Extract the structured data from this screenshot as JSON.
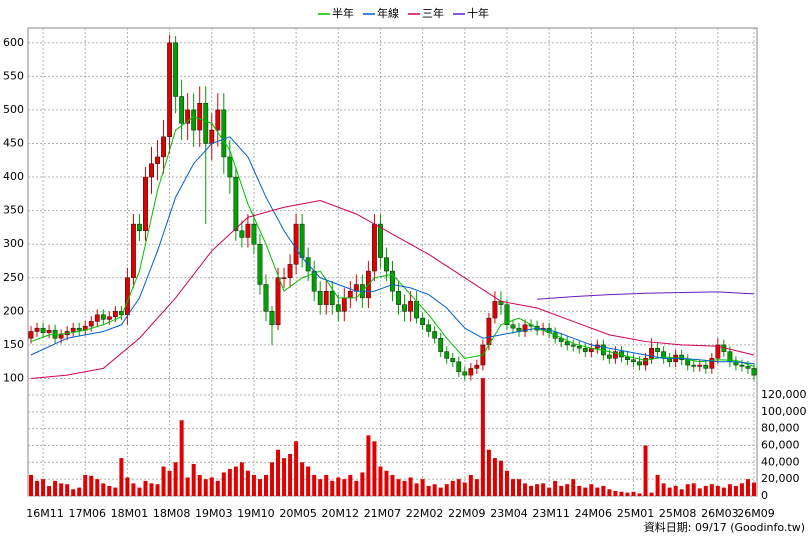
{
  "chart_data": {
    "type": "candlestick",
    "categories": [
      null,
      null,
      "16M11",
      null,
      null,
      null,
      null,
      null,
      null,
      "17M06",
      null,
      null,
      null,
      null,
      null,
      null,
      "18M01",
      null,
      null,
      null,
      null,
      null,
      null,
      "18M08",
      null,
      null,
      null,
      null,
      null,
      null,
      "19M03",
      null,
      null,
      null,
      null,
      null,
      null,
      "19M10",
      null,
      null,
      null,
      null,
      null,
      null,
      "20M05",
      null,
      null,
      null,
      null,
      null,
      null,
      "20M12",
      null,
      null,
      null,
      null,
      null,
      null,
      "21M07",
      null,
      null,
      null,
      null,
      null,
      null,
      "22M02",
      null,
      null,
      null,
      null,
      null,
      null,
      "22M09",
      null,
      null,
      null,
      null,
      null,
      null,
      "23M04",
      null,
      null,
      null,
      null,
      null,
      null,
      "23M11",
      null,
      null,
      null,
      null,
      null,
      null,
      "24M06",
      null,
      null,
      null,
      null,
      null,
      null,
      "25M01",
      null,
      null,
      null,
      null,
      null,
      null,
      "25M08",
      null,
      null,
      null,
      null,
      null,
      null,
      "26M03",
      null,
      null,
      null,
      null,
      null,
      "26M09"
    ],
    "open": [
      160,
      170,
      175,
      168,
      172,
      160,
      165,
      170,
      175,
      172,
      178,
      185,
      195,
      188,
      192,
      200,
      195,
      250,
      330,
      320,
      400,
      420,
      430,
      460,
      600,
      520,
      480,
      500,
      470,
      510,
      450,
      470,
      500,
      430,
      400,
      320,
      310,
      330,
      300,
      240,
      200,
      180,
      250,
      250,
      270,
      330,
      280,
      260,
      230,
      210,
      230,
      210,
      200,
      220,
      230,
      240,
      220,
      260,
      330,
      280,
      260,
      230,
      210,
      200,
      215,
      190,
      180,
      170,
      160,
      140,
      130,
      125,
      110,
      105,
      115,
      120,
      150,
      190,
      215,
      210,
      180,
      175,
      170,
      180,
      178,
      172,
      175,
      168,
      160,
      155,
      150,
      148,
      145,
      140,
      145,
      150,
      135,
      130,
      140,
      132,
      128,
      125,
      120,
      130,
      145,
      140,
      130,
      125,
      135,
      128,
      120,
      118,
      120,
      115,
      130,
      150,
      140,
      125,
      120,
      118,
      115
    ],
    "high": [
      178,
      183,
      183,
      180,
      180,
      173,
      178,
      183,
      183,
      186,
      193,
      203,
      203,
      200,
      208,
      208,
      265,
      345,
      345,
      415,
      445,
      455,
      485,
      612,
      610,
      545,
      525,
      525,
      535,
      535,
      495,
      525,
      525,
      455,
      415,
      335,
      345,
      345,
      315,
      255,
      208,
      265,
      265,
      285,
      345,
      345,
      295,
      275,
      245,
      245,
      245,
      225,
      235,
      245,
      255,
      255,
      275,
      345,
      345,
      295,
      275,
      245,
      225,
      230,
      230,
      198,
      188,
      178,
      168,
      148,
      138,
      133,
      118,
      123,
      128,
      158,
      198,
      230,
      230,
      218,
      188,
      183,
      188,
      188,
      186,
      183,
      183,
      176,
      168,
      163,
      158,
      156,
      153,
      153,
      158,
      158,
      143,
      148,
      148,
      140,
      136,
      133,
      138,
      160,
      153,
      148,
      138,
      143,
      143,
      136,
      128,
      128,
      128,
      138,
      160,
      158,
      148,
      133,
      128,
      126,
      123
    ],
    "low": [
      152,
      162,
      160,
      160,
      152,
      152,
      157,
      162,
      164,
      164,
      170,
      177,
      180,
      180,
      184,
      187,
      180,
      235,
      305,
      305,
      375,
      395,
      405,
      435,
      495,
      455,
      455,
      445,
      445,
      330,
      425,
      445,
      405,
      375,
      305,
      295,
      295,
      285,
      225,
      185,
      150,
      172,
      235,
      235,
      255,
      265,
      245,
      215,
      195,
      195,
      195,
      185,
      185,
      205,
      215,
      205,
      205,
      245,
      265,
      245,
      215,
      195,
      185,
      185,
      182,
      172,
      162,
      152,
      132,
      122,
      117,
      102,
      97,
      97,
      107,
      112,
      142,
      182,
      195,
      172,
      167,
      162,
      162,
      170,
      164,
      164,
      160,
      152,
      147,
      142,
      140,
      137,
      132,
      132,
      137,
      127,
      122,
      122,
      124,
      120,
      117,
      112,
      112,
      122,
      132,
      122,
      117,
      117,
      120,
      112,
      110,
      110,
      107,
      107,
      122,
      132,
      117,
      112,
      110,
      107,
      97
    ],
    "close": [
      170,
      175,
      168,
      172,
      160,
      165,
      170,
      175,
      172,
      178,
      185,
      195,
      188,
      192,
      200,
      195,
      250,
      330,
      320,
      400,
      420,
      430,
      460,
      600,
      520,
      480,
      500,
      470,
      510,
      450,
      470,
      500,
      430,
      400,
      320,
      310,
      330,
      300,
      240,
      200,
      180,
      250,
      250,
      270,
      330,
      280,
      260,
      230,
      210,
      230,
      210,
      200,
      220,
      230,
      240,
      220,
      260,
      330,
      280,
      260,
      230,
      210,
      200,
      215,
      190,
      180,
      170,
      160,
      140,
      130,
      125,
      110,
      105,
      115,
      120,
      150,
      190,
      215,
      210,
      180,
      175,
      170,
      180,
      178,
      172,
      175,
      168,
      160,
      155,
      150,
      148,
      145,
      140,
      145,
      150,
      135,
      130,
      140,
      132,
      128,
      125,
      120,
      130,
      145,
      140,
      130,
      125,
      135,
      128,
      120,
      118,
      120,
      115,
      130,
      150,
      140,
      125,
      120,
      118,
      115,
      105
    ],
    "volume": [
      25000,
      18000,
      20000,
      12000,
      18000,
      15000,
      14000,
      8000,
      10000,
      25000,
      24000,
      20000,
      15000,
      12000,
      10000,
      45000,
      22000,
      15000,
      10000,
      18000,
      15000,
      14000,
      35000,
      30000,
      40000,
      90000,
      22000,
      38000,
      25000,
      20000,
      22000,
      18000,
      28000,
      32000,
      35000,
      40000,
      30000,
      25000,
      20000,
      25000,
      40000,
      55000,
      45000,
      50000,
      65000,
      40000,
      35000,
      25000,
      20000,
      25000,
      18000,
      22000,
      20000,
      25000,
      18000,
      28000,
      72000,
      65000,
      35000,
      30000,
      25000,
      20000,
      18000,
      22000,
      15000,
      20000,
      12000,
      14000,
      10000,
      14000,
      18000,
      20000,
      16000,
      25000,
      20000,
      140000,
      55000,
      45000,
      42000,
      30000,
      20000,
      20000,
      15000,
      12000,
      14000,
      15000,
      10000,
      18000,
      12000,
      14000,
      20000,
      12000,
      10000,
      14000,
      10000,
      12000,
      8000,
      6000,
      5000,
      4000,
      5000,
      3000,
      60000,
      4000,
      25000,
      15000,
      10000,
      12000,
      8000,
      14000,
      15000,
      9000,
      12000,
      14000,
      12000,
      10000,
      14000,
      12000,
      15000,
      20000,
      16000
    ],
    "up_color": "#e00000",
    "down_color": "#00a000",
    "volume_color": "#e00000",
    "series": [
      {
        "name": "半年",
        "color": "#00c000",
        "x": [
          0,
          3,
          6,
          9,
          12,
          15,
          18,
          21,
          24,
          27,
          30,
          33,
          36,
          39,
          42,
          45,
          48,
          51,
          54,
          57,
          60,
          63,
          66,
          69,
          72,
          75,
          78,
          81,
          84,
          87,
          90,
          93,
          96,
          99,
          102,
          105,
          108,
          111,
          114,
          117,
          120
        ],
        "values": [
          155,
          165,
          167,
          172,
          180,
          192,
          260,
          380,
          470,
          490,
          480,
          440,
          360,
          300,
          230,
          250,
          260,
          220,
          220,
          250,
          255,
          225,
          195,
          160,
          130,
          135,
          180,
          190,
          175,
          165,
          152,
          145,
          140,
          133,
          127,
          132,
          130,
          125,
          128,
          127,
          118
        ]
      },
      {
        "name": "年線",
        "color": "#0060d0",
        "x": [
          0,
          6,
          12,
          15,
          18,
          21,
          24,
          27,
          30,
          33,
          36,
          39,
          42,
          45,
          48,
          51,
          54,
          57,
          60,
          63,
          66,
          69,
          72,
          75,
          78,
          81,
          84,
          87,
          90,
          93,
          96,
          99,
          102,
          105,
          108,
          111,
          114,
          117,
          120
        ],
        "values": [
          135,
          160,
          170,
          180,
          220,
          290,
          370,
          420,
          450,
          460,
          430,
          370,
          320,
          280,
          250,
          240,
          230,
          230,
          240,
          235,
          225,
          205,
          175,
          160,
          165,
          170,
          175,
          170,
          160,
          150,
          145,
          140,
          135,
          130,
          130,
          128,
          125,
          125,
          122
        ]
      },
      {
        "name": "三年",
        "color": "#d0005a",
        "x": [
          0,
          6,
          12,
          18,
          24,
          30,
          36,
          42,
          48,
          54,
          60,
          66,
          72,
          78,
          84,
          90,
          96,
          102,
          108,
          114,
          120
        ],
        "values": [
          100,
          105,
          115,
          160,
          220,
          290,
          340,
          355,
          365,
          345,
          315,
          285,
          250,
          215,
          205,
          185,
          165,
          155,
          150,
          148,
          135
        ]
      },
      {
        "name": "十年",
        "color": "#6a1cc0",
        "x": [
          84,
          90,
          96,
          102,
          108,
          114,
          120
        ],
        "values": [
          218,
          222,
          225,
          227,
          228,
          229,
          226
        ]
      }
    ],
    "ylim": [
      -75,
      622
    ],
    "yticks": [
      100,
      150,
      200,
      250,
      300,
      350,
      400,
      450,
      500,
      550,
      600
    ],
    "y2lim": [
      0,
      556000
    ],
    "y2ticks": [
      0,
      {
        "value": 20000,
        "label": "20,000"
      },
      {
        "value": 40000,
        "label": "40,000"
      },
      {
        "value": 60000,
        "label": "60,000"
      },
      {
        "value": 80000,
        "label": "80,000"
      },
      {
        "value": 100000,
        "label": "100,000"
      },
      {
        "value": 120000,
        "label": "120,000"
      }
    ],
    "grid": true,
    "legend": "top",
    "footer": "資料日期: 09/17 (Goodinfo.tw)"
  }
}
